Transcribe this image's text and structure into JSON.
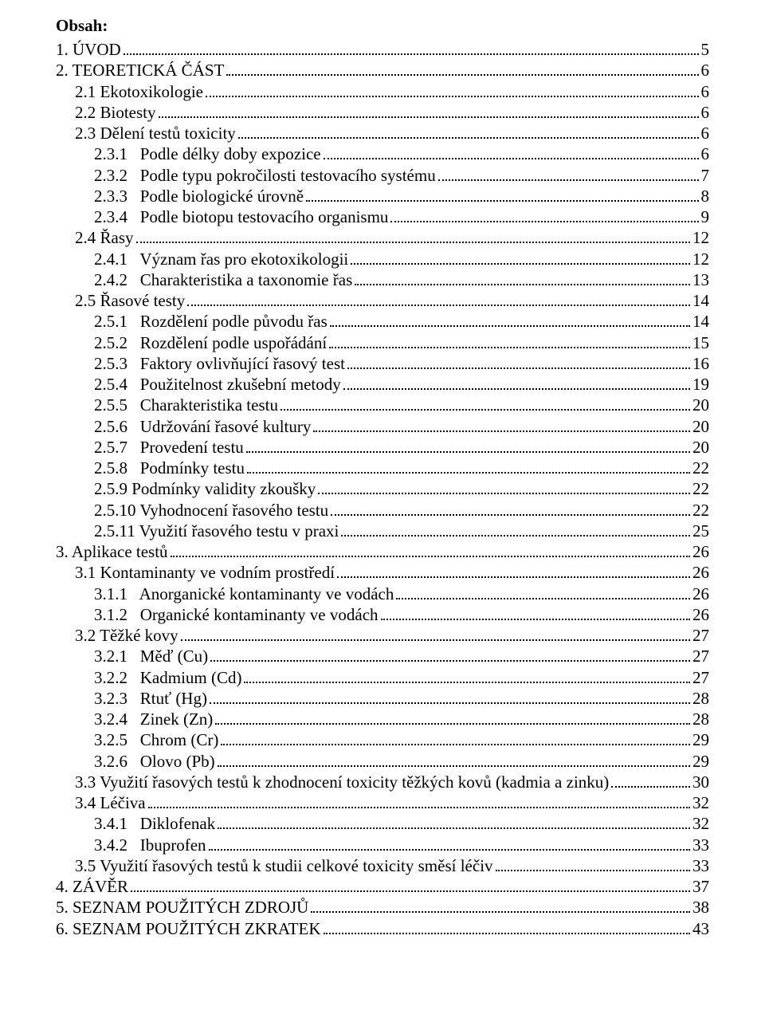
{
  "heading": "Obsah:",
  "entries": [
    {
      "label": "1. ÚVOD",
      "page": "5",
      "indent": 0
    },
    {
      "label": "2. TEORETICKÁ ČÁST",
      "page": "6",
      "indent": 0
    },
    {
      "label": "2.1 Ekotoxikologie",
      "page": "6",
      "indent": 1
    },
    {
      "label": "2.2 Biotesty",
      "page": "6",
      "indent": 1
    },
    {
      "label": "2.3 Dělení testů toxicity",
      "page": "6",
      "indent": 1
    },
    {
      "label": "2.3.1   Podle délky doby expozice",
      "page": "6",
      "indent": 2
    },
    {
      "label": "2.3.2   Podle typu pokročilosti testovacího systému",
      "page": "7",
      "indent": 2
    },
    {
      "label": "2.3.3   Podle biologické úrovně",
      "page": "8",
      "indent": 2
    },
    {
      "label": "2.3.4   Podle biotopu testovacího organismu",
      "page": "9",
      "indent": 2
    },
    {
      "label": "2.4 Řasy",
      "page": "12",
      "indent": 1
    },
    {
      "label": "2.4.1   Význam řas pro ekotoxikologii",
      "page": "12",
      "indent": 2
    },
    {
      "label": "2.4.2   Charakteristika a taxonomie řas",
      "page": "13",
      "indent": 2
    },
    {
      "label": "2.5 Řasové testy",
      "page": "14",
      "indent": 1
    },
    {
      "label": "2.5.1   Rozdělení podle původu řas",
      "page": "14",
      "indent": 2
    },
    {
      "label": "2.5.2   Rozdělení podle uspořádání",
      "page": "15",
      "indent": 2
    },
    {
      "label": "2.5.3   Faktory ovlivňující řasový test",
      "page": "16",
      "indent": 2
    },
    {
      "label": "2.5.4   Použitelnost zkušební metody",
      "page": "19",
      "indent": 2
    },
    {
      "label": "2.5.5   Charakteristika testu",
      "page": "20",
      "indent": 2
    },
    {
      "label": "2.5.6   Udržování řasové kultury",
      "page": "20",
      "indent": 2
    },
    {
      "label": "2.5.7   Provedení testu",
      "page": "20",
      "indent": 2
    },
    {
      "label": "2.5.8   Podmínky testu",
      "page": "22",
      "indent": 2
    },
    {
      "label": "2.5.9 Podmínky validity zkoušky",
      "page": "22",
      "indent": 2
    },
    {
      "label": "2.5.10 Vyhodnocení řasového testu",
      "page": "22",
      "indent": 2
    },
    {
      "label": "2.5.11 Využití řasového testu v praxi",
      "page": "25",
      "indent": 2
    },
    {
      "label": "3. Aplikace testů",
      "page": "26",
      "indent": 0
    },
    {
      "label": "3.1 Kontaminanty ve vodním prostředí",
      "page": "26",
      "indent": 1
    },
    {
      "label": "3.1.1   Anorganické kontaminanty ve vodách",
      "page": "26",
      "indent": 2
    },
    {
      "label": "3.1.2   Organické kontaminanty ve vodách",
      "page": "26",
      "indent": 2
    },
    {
      "label": "3.2 Těžké kovy",
      "page": "27",
      "indent": 1
    },
    {
      "label": "3.2.1   Měď (Cu)",
      "page": "27",
      "indent": 2
    },
    {
      "label": "3.2.2   Kadmium (Cd)",
      "page": "27",
      "indent": 2
    },
    {
      "label": "3.2.3   Rtuť (Hg)",
      "page": "28",
      "indent": 2
    },
    {
      "label": "3.2.4   Zinek (Zn)",
      "page": "28",
      "indent": 2
    },
    {
      "label": "3.2.5   Chrom (Cr)",
      "page": "29",
      "indent": 2
    },
    {
      "label": "3.2.6   Olovo (Pb)",
      "page": "29",
      "indent": 2
    },
    {
      "label": "3.3 Využití řasových testů k zhodnocení toxicity těžkých kovů (kadmia a zinku)",
      "page": "30",
      "indent": 1
    },
    {
      "label": "3.4 Léčiva",
      "page": "32",
      "indent": 1
    },
    {
      "label": "3.4.1   Diklofenak",
      "page": "32",
      "indent": 2
    },
    {
      "label": "3.4.2   Ibuprofen",
      "page": "33",
      "indent": 2
    },
    {
      "label": "3.5 Využití řasových testů k studii celkové toxicity směsí léčiv",
      "page": "33",
      "indent": 1
    },
    {
      "label": "4. ZÁVĚR",
      "page": "37",
      "indent": 0
    },
    {
      "label": "5. SEZNAM POUŽITÝCH ZDROJŮ",
      "page": "38",
      "indent": 0
    },
    {
      "label": "6. SEZNAM POUŽITÝCH ZKRATEK",
      "page": "43",
      "indent": 0
    }
  ]
}
